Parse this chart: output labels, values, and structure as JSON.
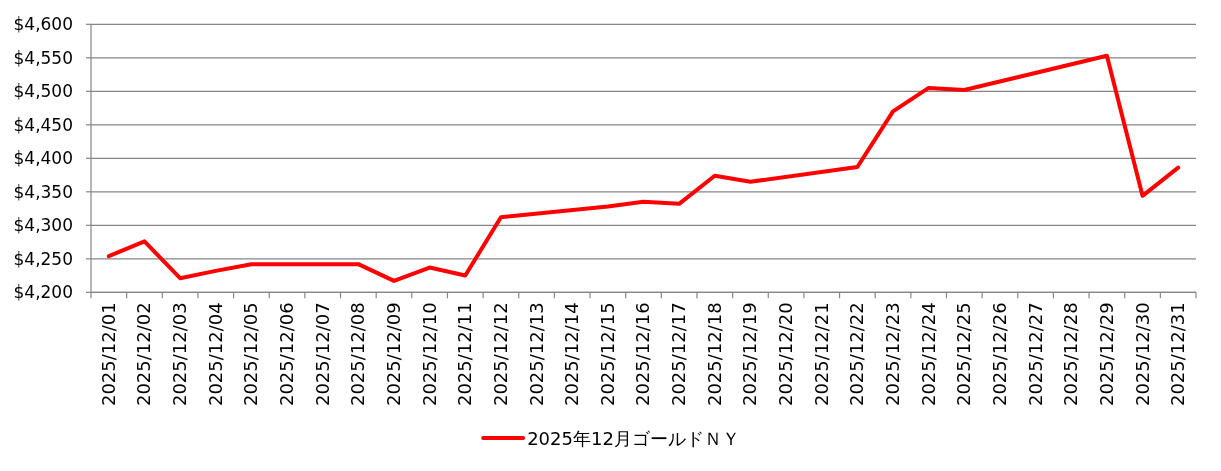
{
  "chart_data": {
    "type": "line",
    "categories": [
      "2025/12/01",
      "2025/12/02",
      "2025/12/03",
      "2025/12/04",
      "2025/12/05",
      "2025/12/06",
      "2025/12/07",
      "2025/12/08",
      "2025/12/09",
      "2025/12/10",
      "2025/12/11",
      "2025/12/12",
      "2025/12/13",
      "2025/12/14",
      "2025/12/15",
      "2025/12/16",
      "2025/12/17",
      "2025/12/18",
      "2025/12/19",
      "2025/12/20",
      "2025/12/21",
      "2025/12/22",
      "2025/12/23",
      "2025/12/24",
      "2025/12/25",
      "2025/12/26",
      "2025/12/27",
      "2025/12/28",
      "2025/12/29",
      "2025/12/30",
      "2025/12/31"
    ],
    "series": [
      {
        "name": "2025年12月ゴールドＮＹ",
        "color": "#ff0000",
        "values": [
          4254,
          4276,
          4221,
          4232,
          4242,
          null,
          null,
          4242,
          4217,
          4237,
          4225,
          4312,
          null,
          null,
          4328,
          4335,
          4332,
          4374,
          4365,
          null,
          null,
          4387,
          4470,
          4505,
          4502,
          null,
          null,
          null,
          4553,
          4344,
          4386
        ]
      }
    ],
    "ylim": [
      4200,
      4600
    ],
    "yticks": [
      {
        "value": 4200,
        "label": "$4,200"
      },
      {
        "value": 4250,
        "label": "$4,250"
      },
      {
        "value": 4300,
        "label": "$4,300"
      },
      {
        "value": 4350,
        "label": "$4,350"
      },
      {
        "value": 4400,
        "label": "$4,400"
      },
      {
        "value": 4450,
        "label": "$4,450"
      },
      {
        "value": 4500,
        "label": "$4,500"
      },
      {
        "value": 4550,
        "label": "$4,550"
      },
      {
        "value": 4600,
        "label": "$4,600"
      }
    ],
    "grid": "y",
    "legend": "bottom"
  }
}
